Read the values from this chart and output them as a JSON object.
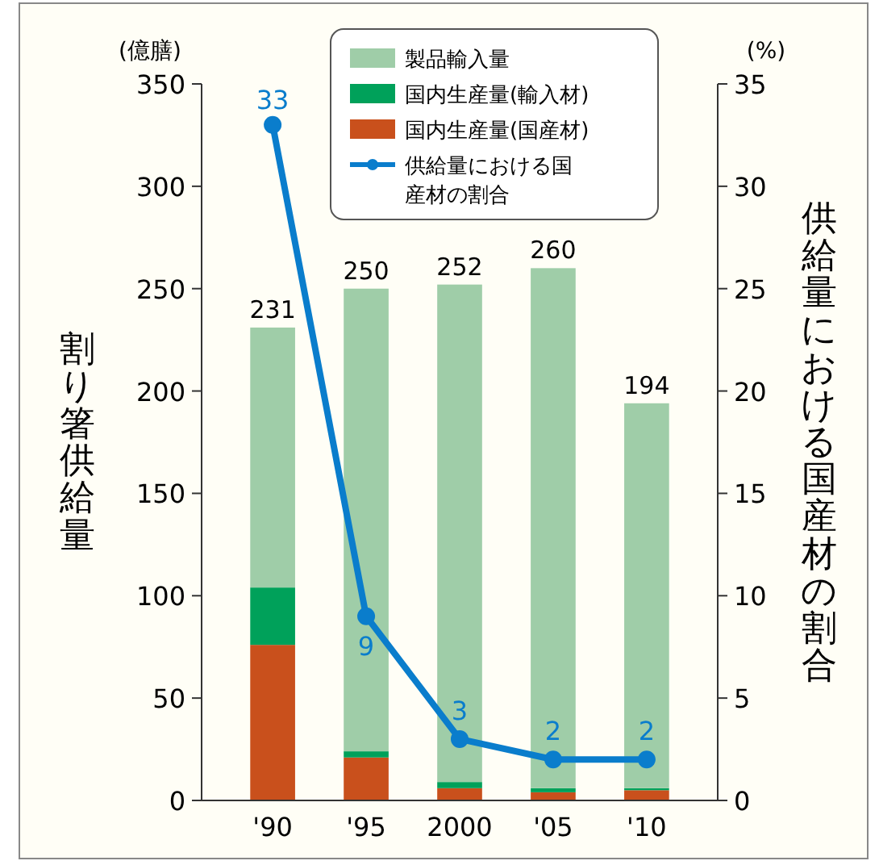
{
  "chart_data": {
    "type": "bar",
    "stacked": true,
    "categories": [
      "'90",
      "'95",
      "2000",
      "'05",
      "'10"
    ],
    "ylabel": "割り箸供給量",
    "y2label": "供給量における国産材の割合",
    "annotations": [
      "(億膳)",
      "(%)"
    ],
    "series": [
      {
        "name": "国内生産量(国産材)",
        "color": "#c9501c",
        "values": [
          76,
          21,
          6,
          4,
          5
        ]
      },
      {
        "name": "国内生産量(輸入材)",
        "color": "#00a15a",
        "values": [
          28,
          3,
          3,
          2,
          1
        ]
      },
      {
        "name": "製品輸入量",
        "color": "#9fcda8",
        "values": [
          127,
          226,
          243,
          254,
          188
        ]
      },
      {
        "name": "供給量における国産材の割合",
        "type": "line",
        "axis": "y2",
        "color": "#0a7dcc",
        "values": [
          33,
          9,
          3,
          2,
          2
        ],
        "data_labels": true,
        "marker": "circle"
      }
    ],
    "totals": [
      "231",
      "250",
      "252",
      "260",
      "194"
    ],
    "ylim": [
      0,
      350
    ],
    "yticks": [
      0,
      50,
      100,
      150,
      200,
      250,
      300,
      350
    ],
    "y2lim": [
      0,
      35
    ],
    "y2ticks": [
      0,
      5,
      10,
      15,
      20,
      25,
      30,
      35
    ],
    "legend": "top",
    "grid": false
  }
}
